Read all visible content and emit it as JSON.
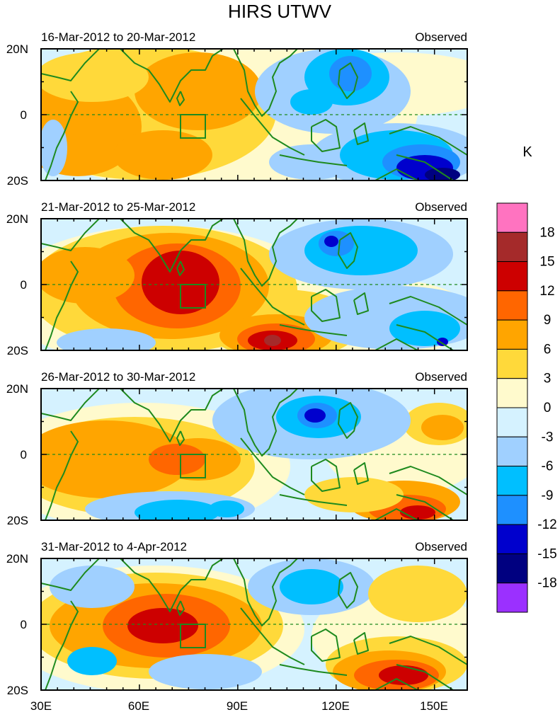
{
  "title": "HIRS UTWV",
  "unit": "K",
  "panels": [
    {
      "date_range": "16-Mar-2012 to 20-Mar-2012",
      "label": "Observed"
    },
    {
      "date_range": "21-Mar-2012 to 25-Mar-2012",
      "label": "Observed"
    },
    {
      "date_range": "26-Mar-2012 to 30-Mar-2012",
      "label": "Observed"
    },
    {
      "date_range": "31-Mar-2012 to 4-Apr-2012",
      "label": "Observed"
    }
  ],
  "lat_ticks": [
    "20N",
    "0",
    "20S"
  ],
  "lon_ticks": [
    "30E",
    "60E",
    "90E",
    "120E",
    "150E"
  ],
  "legend": {
    "labels": [
      "18",
      "15",
      "12",
      "9",
      "6",
      "3",
      "0",
      "-3",
      "-6",
      "-9",
      "-12",
      "-15",
      "-18"
    ],
    "colors": [
      "#ff73c0",
      "#a52a2a",
      "#cd0000",
      "#ff6600",
      "#ffa500",
      "#ffd93a",
      "#fffacd",
      "#d5f2ff",
      "#a0d0ff",
      "#00bfff",
      "#1e90ff",
      "#0000cd",
      "#000080",
      "#9b30ff"
    ]
  },
  "colors": {
    "coast": "#1e8a1e",
    "frame": "#000000"
  }
}
